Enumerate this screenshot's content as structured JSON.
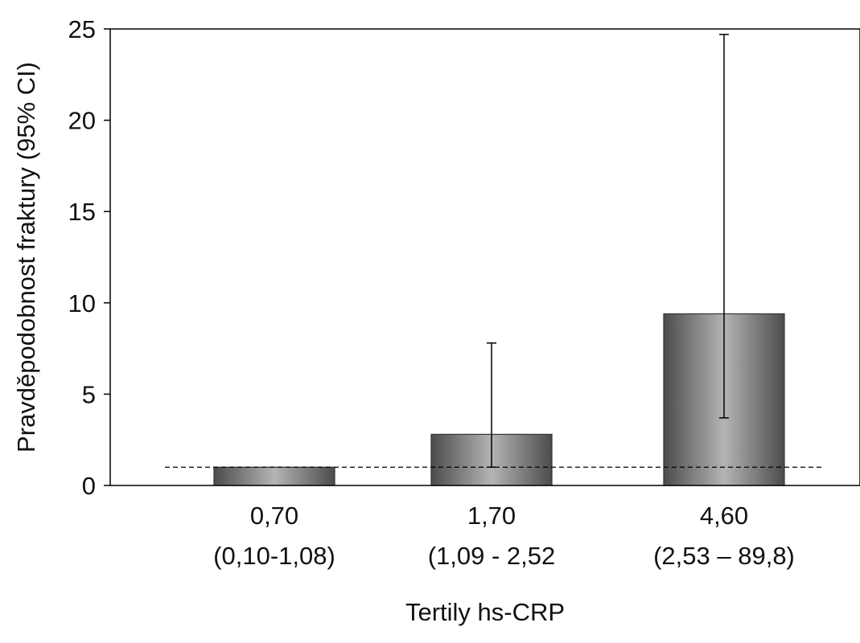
{
  "chart_data": {
    "type": "bar",
    "xlabel": "Tertily hs-CRP",
    "ylabel": "Pravděpodobnost fraktury (95% CI)",
    "ylim": [
      0,
      25
    ],
    "yticks": [
      "0",
      "5",
      "10",
      "15",
      "20",
      "25"
    ],
    "ytick_values": [
      0,
      5,
      10,
      15,
      20,
      25
    ],
    "categories": [
      {
        "line1": "0,70",
        "line2": "(0,10-1,08)"
      },
      {
        "line1": "1,70",
        "line2": "(1,09 - 2,52"
      },
      {
        "line1": "4,60",
        "line2": "(2,53 – 89,8)"
      }
    ],
    "values": [
      1.0,
      2.8,
      9.4
    ],
    "ci_low": [
      null,
      1.0,
      3.7
    ],
    "ci_high": [
      null,
      7.8,
      24.7
    ],
    "reference_line": 1.0,
    "bar_color": "#8a8a8a",
    "grid": false,
    "legend": "none"
  }
}
